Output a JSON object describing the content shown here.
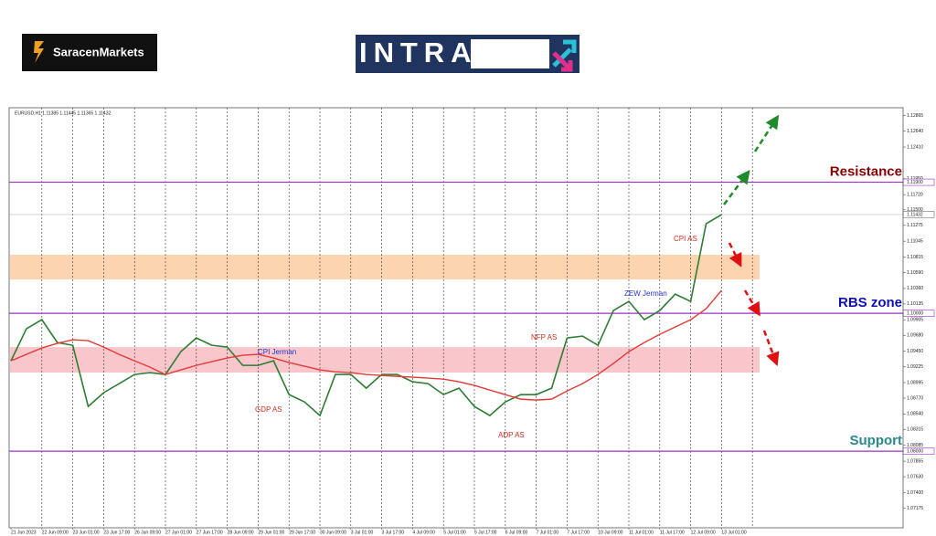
{
  "header": {
    "brand": "SaracenMarkets",
    "banner": "INTRADAY"
  },
  "chart_data": {
    "type": "line",
    "title": "EURUSD,H1  1.11385 1.11445 1.11365 1.11432",
    "categories": [
      "21 Jun 2023",
      null,
      "22 Jun 09:00",
      null,
      "23 Jun 01:00",
      null,
      "23 Jun 17:00",
      null,
      "26 Jun 09:00",
      null,
      "27 Jun 01:00",
      null,
      "27 Jun 17:00",
      null,
      "28 Jun 09:00",
      null,
      "29 Jun 01:00",
      null,
      "29 Jun 17:00",
      null,
      "30 Jun 09:00",
      null,
      "3 Jul 01:00",
      null,
      "3 Jul 17:00",
      null,
      "4 Jul 09:00",
      null,
      "5 Jul 01:00",
      null,
      "5 Jul 17:00",
      null,
      "6 Jul 09:00",
      null,
      "7 Jul 01:00",
      null,
      "7 Jul 17:00",
      null,
      "10 Jul 09:00",
      null,
      "11 Jul 01:00",
      null,
      "11 Jul 17:00",
      null,
      "12 Jul 09:00",
      null,
      "13 Jul 01:00"
    ],
    "series": [
      {
        "color": "#2e7d32",
        "values": [
          1.09311,
          1.09775,
          1.09907,
          1.09576,
          1.09536,
          1.08649,
          1.08848,
          1.0898,
          1.09113,
          1.09139,
          1.09113,
          1.09444,
          1.09642,
          1.09536,
          1.0951,
          1.09245,
          1.09245,
          1.09311,
          1.08821,
          1.08715,
          1.08517,
          1.09113,
          1.09113,
          1.08914,
          1.09113,
          1.09113,
          1.09007,
          1.0898,
          1.08821,
          1.08914,
          1.08649,
          1.08517,
          1.08715,
          1.08821,
          1.08821,
          1.08914,
          1.09642,
          1.09669,
          1.09536,
          1.1004,
          1.10172,
          1.09907,
          1.1004,
          1.10278,
          1.10172,
          1.11298,
          1.1143
        ]
      },
      {
        "color": "#e53935",
        "values": [
          1.09311,
          1.09404,
          1.09497,
          1.09563,
          1.09616,
          1.09603,
          1.0951,
          1.09404,
          1.09311,
          1.09219,
          1.09113,
          1.09179,
          1.09245,
          1.09298,
          1.09351,
          1.09391,
          1.09404,
          1.09351,
          1.09285,
          1.09232,
          1.09179,
          1.09152,
          1.09139,
          1.09113,
          1.09099,
          1.09086,
          1.09073,
          1.0906,
          1.09046,
          1.09007,
          1.08954,
          1.08887,
          1.08821,
          1.08755,
          1.08742,
          1.08755,
          1.08874,
          1.0898,
          1.09113,
          1.09272,
          1.09444,
          1.09576,
          1.09695,
          1.09801,
          1.09907,
          1.10066,
          1.10331
        ]
      }
    ],
    "ylim": [
      1.0689,
      1.1298
    ],
    "yticks": [
      {
        "value": 1.12865,
        "label": "1.12865"
      },
      {
        "value": 1.1264,
        "label": "1.12640"
      },
      {
        "value": 1.1241,
        "label": "1.12410"
      },
      {
        "value": 1.1195,
        "label": "1.11950"
      },
      {
        "value": 1.1172,
        "label": "1.11720"
      },
      {
        "value": 1.115,
        "label": "1.11500"
      },
      {
        "value": 1.11275,
        "label": "1.11275"
      },
      {
        "value": 1.11045,
        "label": "1.11045"
      },
      {
        "value": 1.10815,
        "label": "1.10815"
      },
      {
        "value": 1.1059,
        "label": "1.10590"
      },
      {
        "value": 1.1036,
        "label": "1.10360"
      },
      {
        "value": 1.10135,
        "label": "1.10135"
      },
      {
        "value": 1.09905,
        "label": "1.09905"
      },
      {
        "value": 1.0968,
        "label": "1.09680"
      },
      {
        "value": 1.0945,
        "label": "1.09450"
      },
      {
        "value": 1.09225,
        "label": "1.09225"
      },
      {
        "value": 1.08995,
        "label": "1.08995"
      },
      {
        "value": 1.0877,
        "label": "1.08770"
      },
      {
        "value": 1.0854,
        "label": "1.08540"
      },
      {
        "value": 1.08315,
        "label": "1.08315"
      },
      {
        "value": 1.08085,
        "label": "1.08085"
      },
      {
        "value": 1.07855,
        "label": "1.07855"
      },
      {
        "value": 1.0763,
        "label": "1.07630"
      },
      {
        "value": 1.074,
        "label": "1.07400"
      },
      {
        "value": 1.07175,
        "label": "1.07175"
      }
    ],
    "current_price": {
      "value": 1.11432,
      "label": "1.11432"
    },
    "levels": [
      {
        "value": 1.119,
        "label": "1.11900",
        "name": "Resistance",
        "color": "#8b0000"
      },
      {
        "value": 1.1,
        "label": "1.10000",
        "name": "RBS zone",
        "color": "#1010b0"
      },
      {
        "value": 1.08,
        "label": "1.08000",
        "name": "Support",
        "color": "#2a8a8a"
      }
    ],
    "zones": [
      {
        "range": [
          1.1049,
          1.10848
        ],
        "color": "#fcd5b0"
      },
      {
        "range": [
          1.0914,
          1.0951
        ],
        "color": "#f9c6cc"
      }
    ],
    "annotations": [
      {
        "text": "CPI Jerman",
        "color": "#2233cc"
      },
      {
        "text": "GDP AS",
        "color": "#d03020"
      },
      {
        "text": "ADP AS",
        "color": "#d03020"
      },
      {
        "text": "NFP AS",
        "color": "#d03020"
      },
      {
        "text": "ZEW Jerman",
        "color": "#2233cc"
      },
      {
        "text": "CPI AS",
        "color": "#d03020"
      }
    ],
    "grid": true
  }
}
